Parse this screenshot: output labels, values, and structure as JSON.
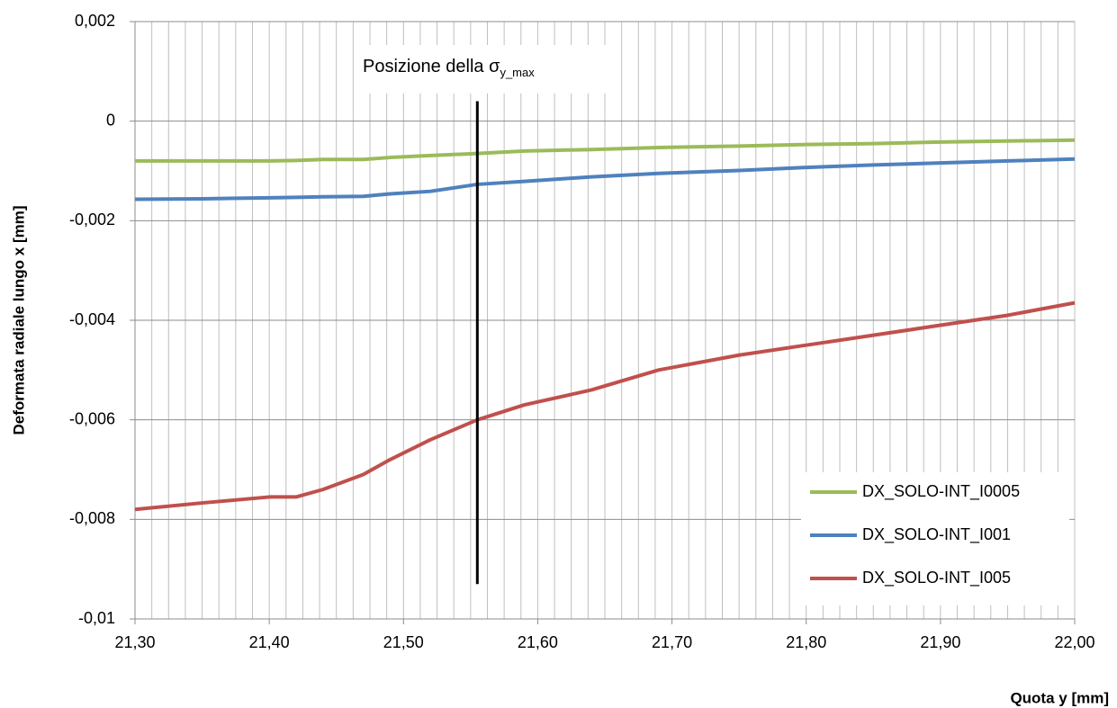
{
  "chart_data": {
    "type": "line",
    "x_label": "Quota y  [mm]",
    "y_label": "Deformata radiale lungo x [mm]",
    "annotation": {
      "text": "Posizione della  σ",
      "subscript": "y_max"
    },
    "vline": {
      "x": 21.555,
      "y": [
        -0.0093,
        0.0004
      ]
    },
    "x": [
      21.3,
      21.35,
      21.4,
      21.42,
      21.44,
      21.47,
      21.49,
      21.52,
      21.555,
      21.59,
      21.64,
      21.69,
      21.75,
      21.8,
      21.85,
      21.9,
      21.95,
      22.0
    ],
    "series": [
      {
        "name": "DX_SOLO-INT_I0005",
        "color": "#9bbb59",
        "values": [
          -0.0008,
          -0.0008,
          -0.0008,
          -0.00079,
          -0.00077,
          -0.00077,
          -0.00073,
          -0.00069,
          -0.00065,
          -0.0006,
          -0.00057,
          -0.00053,
          -0.0005,
          -0.00047,
          -0.00045,
          -0.00042,
          -0.0004,
          -0.00038
        ]
      },
      {
        "name": "DX_SOLO-INT_I001",
        "color": "#4f81bd",
        "values": [
          -0.00157,
          -0.00156,
          -0.00154,
          -0.00153,
          -0.00152,
          -0.00151,
          -0.00146,
          -0.00141,
          -0.00127,
          -0.00121,
          -0.00112,
          -0.00105,
          -0.00099,
          -0.00093,
          -0.00088,
          -0.00084,
          -0.0008,
          -0.00076
        ]
      },
      {
        "name": "DX_SOLO-INT_I005",
        "color": "#c0504d",
        "values": [
          -0.0078,
          -0.00767,
          -0.00755,
          -0.00755,
          -0.0074,
          -0.0071,
          -0.0068,
          -0.0064,
          -0.006,
          -0.0057,
          -0.0054,
          -0.005,
          -0.0047,
          -0.0045,
          -0.0043,
          -0.0041,
          -0.0039,
          -0.00365
        ]
      }
    ],
    "xlim": [
      21.3,
      22.0
    ],
    "ylim": [
      -0.01,
      0.002
    ],
    "xticks": [
      {
        "value": 21.3,
        "label": "21,30"
      },
      {
        "value": 21.4,
        "label": "21,40"
      },
      {
        "value": 21.5,
        "label": "21,50"
      },
      {
        "value": 21.6,
        "label": "21,60"
      },
      {
        "value": 21.7,
        "label": "21,70"
      },
      {
        "value": 21.8,
        "label": "21,80"
      },
      {
        "value": 21.9,
        "label": "21,90"
      },
      {
        "value": 22.0,
        "label": "22,00"
      }
    ],
    "xgrid": [
      21.3,
      21.3125,
      21.325,
      21.3375,
      21.35,
      21.3625,
      21.375,
      21.3875,
      21.4,
      21.4125,
      21.425,
      21.4375,
      21.45,
      21.4625,
      21.475,
      21.4875,
      21.5,
      21.5125,
      21.525,
      21.5375,
      21.55,
      21.5625,
      21.575,
      21.5875,
      21.6,
      21.6125,
      21.625,
      21.6375,
      21.65,
      21.6625,
      21.675,
      21.6875,
      21.7,
      21.7125,
      21.725,
      21.7375,
      21.75,
      21.7625,
      21.775,
      21.7875,
      21.8,
      21.8125,
      21.825,
      21.8375,
      21.85,
      21.8625,
      21.875,
      21.8875,
      21.9,
      21.9125,
      21.925,
      21.9375,
      21.95,
      21.9625,
      21.975,
      21.9875,
      22.0
    ],
    "yticks": [
      {
        "value": 0.002,
        "label": "0,002"
      },
      0,
      {
        "value": -0.002,
        "label": "-0,002"
      },
      {
        "value": -0.004,
        "label": "-0,004"
      },
      {
        "value": -0.006,
        "label": "-0,006"
      },
      {
        "value": -0.008,
        "label": "-0,008"
      },
      {
        "value": -0.01,
        "label": "-0,01"
      }
    ],
    "grid": true,
    "legend": "lower right"
  }
}
